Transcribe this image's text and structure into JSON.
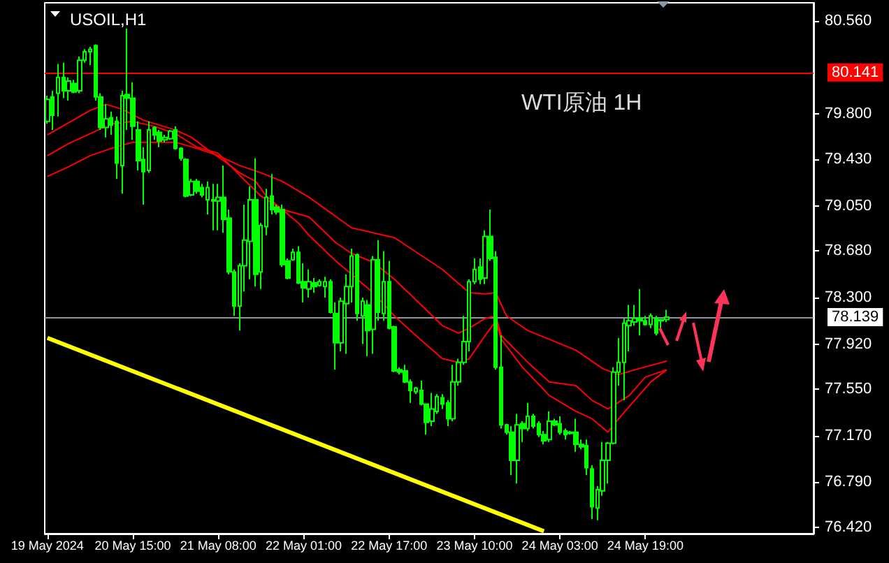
{
  "chart_data": {
    "type": "candlestick",
    "title": "USOIL,H1",
    "annotations": [
      "WTI原油 1H"
    ],
    "categories": [
      "19 May 2024",
      null,
      null,
      null,
      null,
      null,
      null,
      null,
      null,
      null,
      null,
      null,
      null,
      null,
      null,
      null,
      "20 May 15:00",
      null,
      null,
      null,
      null,
      null,
      null,
      null,
      null,
      null,
      null,
      null,
      null,
      null,
      null,
      null,
      "21 May 08:00",
      null,
      null,
      null,
      null,
      null,
      null,
      null,
      null,
      null,
      null,
      null,
      null,
      null,
      null,
      null,
      "22 May 01:00",
      null,
      null,
      null,
      null,
      null,
      null,
      null,
      null,
      null,
      null,
      null,
      null,
      null,
      null,
      null,
      "22 May 17:00",
      null,
      null,
      null,
      null,
      null,
      null,
      null,
      null,
      null,
      null,
      null,
      null,
      null,
      null,
      null,
      "23 May 10:00",
      null,
      null,
      null,
      null,
      null,
      null,
      null,
      null,
      null,
      null,
      null,
      null,
      null,
      null,
      null,
      "24 May 03:00",
      null,
      null,
      null,
      null,
      null,
      null,
      null,
      null,
      null,
      null,
      null,
      null,
      null,
      null,
      null,
      "24 May 19:00",
      null,
      null,
      null,
      null,
      null,
      null,
      null,
      null,
      null,
      null,
      null,
      null,
      null,
      null,
      null,
      null,
      null,
      null,
      null,
      null,
      null,
      null,
      null,
      null,
      null,
      null,
      null,
      null,
      null,
      null,
      null
    ],
    "series": [
      {
        "color": "#00ff00",
        "ohlc": [
          [
            79.74,
            79.95,
            79.72,
            79.92
          ],
          [
            79.94,
            79.99,
            79.67,
            79.79
          ],
          [
            79.97,
            80.21,
            79.78,
            80.1
          ],
          [
            80.1,
            80.22,
            79.93,
            79.99
          ],
          [
            79.99,
            80.1,
            79.91,
            80.07
          ],
          [
            80.05,
            80.08,
            79.97,
            79.98
          ],
          [
            79.99,
            80.27,
            79.97,
            80.24
          ],
          [
            80.24,
            80.33,
            80.22,
            80.31
          ],
          [
            80.31,
            80.35,
            80.2,
            80.33
          ],
          [
            80.36,
            80.37,
            79.91,
            79.94
          ],
          [
            79.94,
            79.97,
            79.67,
            79.69
          ],
          [
            79.69,
            79.88,
            79.61,
            79.76
          ],
          [
            79.77,
            79.82,
            79.63,
            79.71
          ],
          [
            79.74,
            79.78,
            79.27,
            79.4
          ],
          [
            79.38,
            79.99,
            79.15,
            79.95
          ],
          [
            79.96,
            80.5,
            79.67,
            79.93
          ],
          [
            79.93,
            80.06,
            79.59,
            79.7
          ],
          [
            79.67,
            79.74,
            79.34,
            79.42
          ],
          [
            79.43,
            79.53,
            79.06,
            79.33
          ],
          [
            79.34,
            79.74,
            79.32,
            79.67
          ],
          [
            79.69,
            79.7,
            79.59,
            79.63
          ],
          [
            79.65,
            79.67,
            79.53,
            79.58
          ],
          [
            79.59,
            79.63,
            79.57,
            79.61
          ],
          [
            79.6,
            79.67,
            79.59,
            79.66
          ],
          [
            79.67,
            79.7,
            79.51,
            79.52
          ],
          [
            79.52,
            79.53,
            79.42,
            79.44
          ],
          [
            79.43,
            79.44,
            79.12,
            79.13
          ],
          [
            79.14,
            79.27,
            79.13,
            79.25
          ],
          [
            79.25,
            79.27,
            79.15,
            79.17
          ],
          [
            79.2,
            79.23,
            79.12,
            79.14
          ],
          [
            79.1,
            79.25,
            78.98,
            79.2
          ],
          [
            79.1,
            79.23,
            78.85,
            79.09
          ],
          [
            79.09,
            79.23,
            78.85,
            79.12
          ],
          [
            79.12,
            79.38,
            78.83,
            78.94
          ],
          [
            78.95,
            79.02,
            78.49,
            78.51
          ],
          [
            78.51,
            78.53,
            78.15,
            78.23
          ],
          [
            78.23,
            78.58,
            78.03,
            78.56
          ],
          [
            78.56,
            79.06,
            78.35,
            78.77
          ],
          [
            78.76,
            79.21,
            78.45,
            79.1
          ],
          [
            79.1,
            79.44,
            78.39,
            78.49
          ],
          [
            78.51,
            78.91,
            78.37,
            78.89
          ],
          [
            78.88,
            79.19,
            78.81,
            79.12
          ],
          [
            79.13,
            79.31,
            78.98,
            79.02
          ],
          [
            79.04,
            79.06,
            78.98,
            79.0
          ],
          [
            79.02,
            79.06,
            78.55,
            78.57
          ],
          [
            78.6,
            78.62,
            78.45,
            78.46
          ],
          [
            78.61,
            78.7,
            78.6,
            78.67
          ],
          [
            78.67,
            78.72,
            78.41,
            78.42
          ],
          [
            78.43,
            78.58,
            78.26,
            78.38
          ],
          [
            78.37,
            78.53,
            78.3,
            78.43
          ],
          [
            78.42,
            78.46,
            78.34,
            78.39
          ],
          [
            78.4,
            78.45,
            78.39,
            78.43
          ],
          [
            78.39,
            78.47,
            78.3,
            78.43
          ],
          [
            78.43,
            78.45,
            78.17,
            78.18
          ],
          [
            78.17,
            78.26,
            77.71,
            77.93
          ],
          [
            77.93,
            78.3,
            77.86,
            78.27
          ],
          [
            78.25,
            78.49,
            77.84,
            78.39
          ],
          [
            78.39,
            78.7,
            78.26,
            78.64
          ],
          [
            78.65,
            78.66,
            78.11,
            78.17
          ],
          [
            78.15,
            78.3,
            77.92,
            78.27
          ],
          [
            78.24,
            78.28,
            77.82,
            78.03
          ],
          [
            78.04,
            78.64,
            77.84,
            78.61
          ],
          [
            78.61,
            78.77,
            78.11,
            78.18
          ],
          [
            78.17,
            78.68,
            78.11,
            78.43
          ],
          [
            78.43,
            78.6,
            78.04,
            78.05
          ],
          [
            78.06,
            78.07,
            77.69,
            77.7
          ],
          [
            77.71,
            77.73,
            77.67,
            77.69
          ],
          [
            77.7,
            77.75,
            77.6,
            77.61
          ],
          [
            77.61,
            77.63,
            77.44,
            77.54
          ],
          [
            77.53,
            77.57,
            77.51,
            77.56
          ],
          [
            77.54,
            77.62,
            77.42,
            77.43
          ],
          [
            77.43,
            77.43,
            77.18,
            77.28
          ],
          [
            77.29,
            77.52,
            77.25,
            77.39
          ],
          [
            77.37,
            77.51,
            77.35,
            77.49
          ],
          [
            77.48,
            77.51,
            77.39,
            77.43
          ],
          [
            77.44,
            77.46,
            77.25,
            77.31
          ],
          [
            77.31,
            77.75,
            77.29,
            77.61
          ],
          [
            77.61,
            77.8,
            77.58,
            77.77
          ],
          [
            77.77,
            78.15,
            77.75,
            77.94
          ],
          [
            77.94,
            78.45,
            77.86,
            78.43
          ],
          [
            78.43,
            78.62,
            78.41,
            78.53
          ],
          [
            78.55,
            78.62,
            78.41,
            78.45
          ],
          [
            78.46,
            78.85,
            78.41,
            78.8
          ],
          [
            78.8,
            79.02,
            78.6,
            78.62
          ],
          [
            78.63,
            78.68,
            77.71,
            77.73
          ],
          [
            77.73,
            77.99,
            77.23,
            77.26
          ],
          [
            77.26,
            77.27,
            77.18,
            77.2
          ],
          [
            77.2,
            77.25,
            76.85,
            76.97
          ],
          [
            76.97,
            77.35,
            76.78,
            77.26
          ],
          [
            77.27,
            77.29,
            77.12,
            77.23
          ],
          [
            77.23,
            77.44,
            77.21,
            77.33
          ],
          [
            77.33,
            77.35,
            77.23,
            77.25
          ],
          [
            77.27,
            77.29,
            77.16,
            77.18
          ],
          [
            77.18,
            77.21,
            77.1,
            77.13
          ],
          [
            77.14,
            77.37,
            77.12,
            77.29
          ],
          [
            77.29,
            77.31,
            77.25,
            77.26
          ],
          [
            77.27,
            77.33,
            77.18,
            77.2
          ],
          [
            77.21,
            77.23,
            77.14,
            77.18
          ],
          [
            77.19,
            77.21,
            77.18,
            77.2
          ],
          [
            77.2,
            77.31,
            77.04,
            77.1
          ],
          [
            77.1,
            77.14,
            77.06,
            77.08
          ],
          [
            77.09,
            77.14,
            76.85,
            76.91
          ],
          [
            76.9,
            76.93,
            76.49,
            76.59
          ],
          [
            76.58,
            76.76,
            76.48,
            76.73
          ],
          [
            76.72,
            77.12,
            76.68,
            76.97
          ],
          [
            76.97,
            77.12,
            76.78,
            77.11
          ],
          [
            77.11,
            77.73,
            77.1,
            77.69
          ],
          [
            77.69,
            77.97,
            77.58,
            77.77
          ],
          [
            77.77,
            78.13,
            77.46,
            78.09
          ],
          [
            78.07,
            78.24,
            77.86,
            78.11
          ],
          [
            78.1,
            78.24,
            78.07,
            78.13
          ],
          [
            78.13,
            78.37,
            77.99,
            78.11
          ],
          [
            78.11,
            78.15,
            78.07,
            78.08
          ],
          [
            78.08,
            78.17,
            78.05,
            78.15
          ],
          [
            78.13,
            78.15,
            77.99,
            78.01
          ],
          [
            78.11,
            78.12,
            78.05,
            78.12
          ],
          [
            78.12,
            78.2,
            78.1,
            78.14
          ],
          null,
          null,
          null,
          null,
          null,
          null,
          null,
          null,
          null,
          null,
          null,
          null,
          null,
          null,
          null,
          null,
          null,
          null,
          null,
          null,
          null,
          null,
          null,
          null,
          null,
          null,
          null
        ]
      },
      {
        "type": "line",
        "color": "#ff0000",
        "values": [
          79.29,
          null,
          null,
          null,
          79.37,
          null,
          null,
          null,
          79.46,
          null,
          null,
          null,
          79.52,
          null,
          null,
          null,
          79.57,
          null,
          null,
          null,
          79.57,
          null,
          null,
          null,
          79.57,
          null,
          null,
          null,
          79.52,
          null,
          null,
          null,
          79.46,
          null,
          null,
          null,
          79.38,
          null,
          null,
          null,
          79.32,
          null,
          null,
          null,
          79.25,
          null,
          null,
          null,
          null,
          79.12,
          null,
          null,
          null,
          null,
          null,
          null,
          null,
          78.87,
          null,
          null,
          null,
          null,
          null,
          null,
          null,
          78.79,
          null,
          null,
          null,
          null,
          null,
          null,
          null,
          null,
          78.53,
          null,
          null,
          null,
          null,
          78.34,
          null,
          null,
          78.33,
          null,
          78.34,
          null,
          78.15,
          null,
          null,
          null,
          78.03,
          null,
          null,
          null,
          null,
          null,
          null,
          null,
          null,
          77.87,
          null,
          null,
          null,
          null,
          77.72,
          null,
          null,
          77.67,
          null,
          null,
          77.71,
          null,
          null,
          null,
          null,
          null,
          77.78,
          null,
          null,
          null,
          null,
          null,
          null,
          null,
          null,
          null,
          null,
          null,
          null,
          null,
          null,
          null,
          null,
          null,
          null,
          null,
          null,
          null,
          null,
          null,
          null,
          null,
          null,
          null
        ]
      },
      {
        "type": "line",
        "color": "#ff0000",
        "values": [
          79.46,
          null,
          null,
          null,
          79.56,
          null,
          null,
          null,
          79.64,
          null,
          null,
          null,
          79.72,
          null,
          null,
          null,
          79.74,
          null,
          null,
          null,
          79.7,
          null,
          null,
          null,
          79.64,
          null,
          null,
          null,
          79.53,
          null,
          null,
          null,
          79.48,
          null,
          null,
          null,
          79.3,
          null,
          null,
          null,
          79.13,
          null,
          null,
          null,
          79.02,
          null,
          null,
          null,
          null,
          78.96,
          null,
          null,
          null,
          null,
          78.75,
          null,
          null,
          78.66,
          null,
          null,
          null,
          78.59,
          null,
          null,
          null,
          78.45,
          null,
          null,
          null,
          null,
          78.24,
          null,
          null,
          null,
          78.07,
          null,
          null,
          78.01,
          null,
          78.05,
          null,
          null,
          78.13,
          null,
          78.15,
          77.99,
          null,
          null,
          null,
          null,
          77.77,
          null,
          null,
          null,
          77.61,
          null,
          null,
          null,
          null,
          77.58,
          null,
          null,
          77.46,
          null,
          null,
          77.39,
          null,
          null,
          null,
          77.5,
          null,
          null,
          77.65,
          null,
          null,
          null,
          77.71,
          null,
          null,
          null,
          null,
          null,
          null,
          null,
          null,
          null,
          null,
          null,
          null,
          null,
          null,
          null,
          null,
          null,
          null,
          null,
          null,
          null,
          null,
          null,
          null,
          null,
          null,
          null
        ]
      },
      {
        "type": "line",
        "color": "#ff0000",
        "values": [
          79.63,
          null,
          null,
          null,
          79.73,
          null,
          null,
          null,
          79.83,
          null,
          null,
          79.88,
          null,
          null,
          79.84,
          null,
          null,
          null,
          79.75,
          null,
          null,
          79.71,
          null,
          null,
          79.67,
          null,
          null,
          79.61,
          null,
          null,
          79.51,
          null,
          null,
          79.42,
          null,
          null,
          79.32,
          null,
          null,
          79.25,
          null,
          79.13,
          null,
          null,
          79.02,
          null,
          null,
          78.91,
          null,
          78.81,
          null,
          null,
          null,
          null,
          78.6,
          null,
          null,
          78.49,
          null,
          null,
          null,
          78.34,
          null,
          null,
          null,
          78.15,
          null,
          null,
          null,
          77.99,
          null,
          null,
          null,
          null,
          77.8,
          null,
          null,
          77.77,
          null,
          77.8,
          null,
          null,
          77.99,
          null,
          78.11,
          77.96,
          null,
          null,
          null,
          77.73,
          null,
          null,
          null,
          null,
          77.5,
          null,
          null,
          null,
          null,
          77.37,
          null,
          null,
          77.31,
          null,
          null,
          77.2,
          null,
          77.31,
          null,
          null,
          77.46,
          null,
          null,
          77.61,
          null,
          null,
          77.71,
          null,
          null,
          null,
          null,
          null,
          null,
          null,
          null,
          null,
          null,
          null,
          null,
          null,
          null,
          null,
          null,
          null,
          null,
          null,
          null,
          null,
          null,
          null,
          null,
          null,
          null,
          null
        ]
      },
      {
        "type": "line",
        "color": "#ffff00",
        "values": [
          77.97,
          null,
          null,
          null,
          null,
          null,
          null,
          null,
          null,
          null,
          null,
          null,
          null,
          null,
          null,
          null,
          null,
          null,
          null,
          null,
          null,
          null,
          null,
          null,
          null,
          null,
          null,
          null,
          null,
          null,
          null,
          null,
          null,
          null,
          null,
          null,
          null,
          null,
          null,
          null,
          null,
          null,
          null,
          null,
          null,
          null,
          null,
          null,
          null,
          null,
          null,
          null,
          null,
          null,
          null,
          null,
          null,
          null,
          null,
          null,
          null,
          null,
          null,
          null,
          null,
          null,
          null,
          null,
          null,
          null,
          null,
          null,
          null,
          null,
          null,
          null,
          null,
          null,
          null,
          null,
          null,
          null,
          null,
          null,
          null,
          null,
          null,
          null,
          null,
          null,
          null,
          null,
          null,
          76.39,
          null,
          null,
          null,
          null,
          null,
          null,
          null,
          null,
          null,
          null,
          null,
          null,
          null,
          null,
          null,
          null,
          null,
          null,
          null,
          null,
          null,
          null,
          null,
          null,
          null,
          null,
          null,
          null,
          null,
          null,
          null,
          null,
          null,
          null,
          null,
          null,
          null,
          null,
          null,
          null,
          null,
          null,
          null,
          null,
          null,
          null,
          null,
          null,
          null,
          null
        ]
      }
    ],
    "ylim": [
      76.37,
      80.71
    ],
    "yticks": [
      {
        "value": 76.42,
        "label": "76.420"
      },
      {
        "value": 76.79,
        "label": "76.790"
      },
      {
        "value": 77.17,
        "label": "77.170"
      },
      {
        "value": 77.55,
        "label": "77.550"
      },
      {
        "value": 77.92,
        "label": "77.920"
      },
      {
        "value": 78.3,
        "label": "78.300"
      },
      {
        "value": 78.68,
        "label": "78.680"
      },
      {
        "value": 79.05,
        "label": "79.050"
      },
      {
        "value": 79.43,
        "label": "79.430"
      },
      {
        "value": 79.8,
        "label": "79.800"
      },
      {
        "value": 80.56,
        "label": "80.560"
      }
    ],
    "ref_lines": [
      {
        "axis": "y",
        "value": 80.141,
        "label": "80.141",
        "color": "#ff0000"
      },
      {
        "axis": "y",
        "value": 78.139,
        "label": "78.139",
        "color": "#8c96a0"
      }
    ],
    "grid": false,
    "marker": "none"
  }
}
